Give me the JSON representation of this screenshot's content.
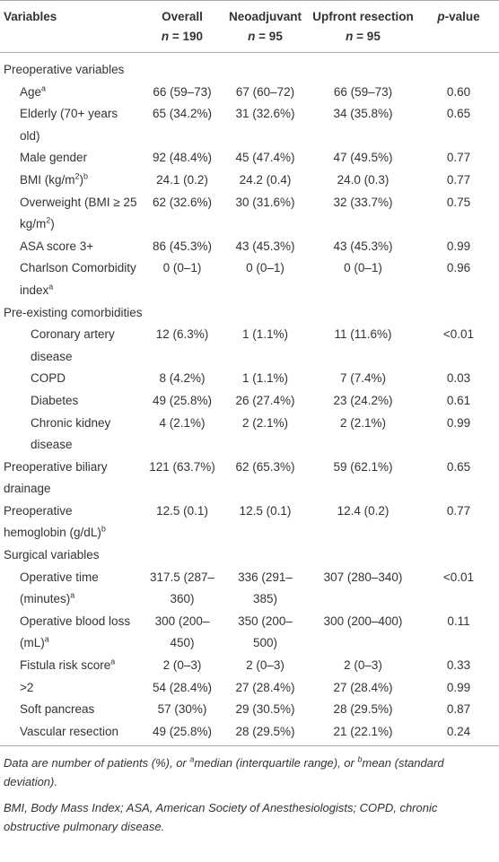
{
  "table": {
    "header": [
      {
        "label": "Variables"
      },
      {
        "label": "Overall",
        "n": "n = 190"
      },
      {
        "label": "Neoadjuvant",
        "n": "n = 95"
      },
      {
        "label": "Upfront resection",
        "n": "n = 95"
      },
      {
        "label": "p-value"
      }
    ],
    "body": [
      {
        "title": "Preoperative variables",
        "rows": [
          {
            "label": [
              "Age",
              {
                "sup": "a"
              }
            ],
            "values": [
              "66 (59–73)",
              "67 (60–72)",
              "66 (59–73)",
              "0.60"
            ]
          },
          {
            "label": [
              "Elderly (70+ years old)"
            ],
            "values": [
              "65 (34.2%)",
              "31 (32.6%)",
              "34 (35.8%)",
              "0.65"
            ]
          },
          {
            "label": [
              "Male gender"
            ],
            "values": [
              "92 (48.4%)",
              "45 (47.4%)",
              "47 (49.5%)",
              "0.77"
            ]
          },
          {
            "label": [
              "BMI (kg/m",
              {
                "sup": "2"
              },
              ")",
              {
                "sup": "b"
              }
            ],
            "values": [
              "24.1 (0.2)",
              "24.2 (0.4)",
              "24.0 (0.3)",
              "0.77"
            ]
          },
          {
            "label": [
              "Overweight (BMI ≥ 25 kg/m",
              {
                "sup": "2"
              },
              ")"
            ],
            "values": [
              "62 (32.6%)",
              "30 (31.6%)",
              "32 (33.7%)",
              "0.75"
            ]
          },
          {
            "label": [
              "ASA score 3+"
            ],
            "values": [
              "86 (45.3%)",
              "43 (45.3%)",
              "43 (45.3%)",
              "0.99"
            ]
          },
          {
            "label": [
              "Charlson Comorbidity index",
              {
                "sup": "a"
              }
            ],
            "values": [
              "0 (0–1)",
              "0 (0–1)",
              "0 (0–1)",
              "0.96"
            ]
          }
        ]
      },
      {
        "title": "Pre-existing comorbidities",
        "rows": [
          {
            "label": [
              "Coronary artery disease"
            ],
            "values": [
              "12 (6.3%)",
              "1 (1.1%)",
              "11 (11.6%)",
              "<0.01"
            ]
          },
          {
            "label": [
              "COPD"
            ],
            "values": [
              "8 (4.2%)",
              "1 (1.1%)",
              "7 (7.4%)",
              "0.03"
            ]
          },
          {
            "label": [
              "Diabetes"
            ],
            "values": [
              "49 (25.8%)",
              "26 (27.4%)",
              "23 (24.2%)",
              "0.61"
            ]
          },
          {
            "label": [
              "Chronic kidney disease"
            ],
            "values": [
              "4 (2.1%)",
              "2 (2.1%)",
              "2 (2.1%)",
              "0.99"
            ]
          }
        ]
      },
      {
        "label": [
          "Preoperative biliary drainage"
        ],
        "values": [
          "121 (63.7%)",
          "62 (65.3%)",
          "59 (62.1%)",
          "0.65"
        ]
      },
      {
        "label": [
          "Preoperative hemoglobin (g/dL)",
          {
            "sup": "b"
          }
        ],
        "values": [
          "12.5 (0.1)",
          "12.5 (0.1)",
          "12.4 (0.2)",
          "0.77"
        ]
      },
      {
        "title": "Surgical variables",
        "rows": [
          {
            "label": [
              "Operative time (minutes)",
              {
                "sup": "a"
              }
            ],
            "values": [
              "317.5 (287–360)",
              "336 (291–385)",
              "307 (280–340)",
              "<0.01"
            ]
          },
          {
            "label": [
              "Operative blood loss (mL)",
              {
                "sup": "a"
              }
            ],
            "values": [
              "300 (200–450)",
              "350 (200–500)",
              "300 (200–400)",
              "0.11"
            ]
          },
          {
            "label": [
              "Fistula risk score",
              {
                "sup": "a"
              }
            ],
            "values": [
              "2 (0–3)",
              "2 (0–3)",
              "2 (0–3)",
              "0.33"
            ]
          },
          {
            "label": [
              ">2"
            ],
            "values": [
              "54 (28.4%)",
              "27 (28.4%)",
              "27 (28.4%)",
              "0.99"
            ]
          },
          {
            "label": [
              "Soft pancreas"
            ],
            "values": [
              "57 (30%)",
              "29 (30.5%)",
              "28 (29.5%)",
              "0.87"
            ]
          },
          {
            "label": [
              "Vascular resection"
            ],
            "values": [
              "49 (25.8%)",
              "28 (29.5%)",
              "21 (22.1%)",
              "0.24"
            ]
          }
        ]
      }
    ]
  },
  "footnotes": [
    [
      "Data are number of patients (%), or ",
      {
        "sup": "a"
      },
      "median (interquartile range), or ",
      {
        "sup": "b"
      },
      "mean (standard deviation)."
    ],
    [
      "BMI, Body Mass Index; ASA, American Society of Anesthesiologists; COPD, chronic obstructive pulmonary disease."
    ]
  ]
}
